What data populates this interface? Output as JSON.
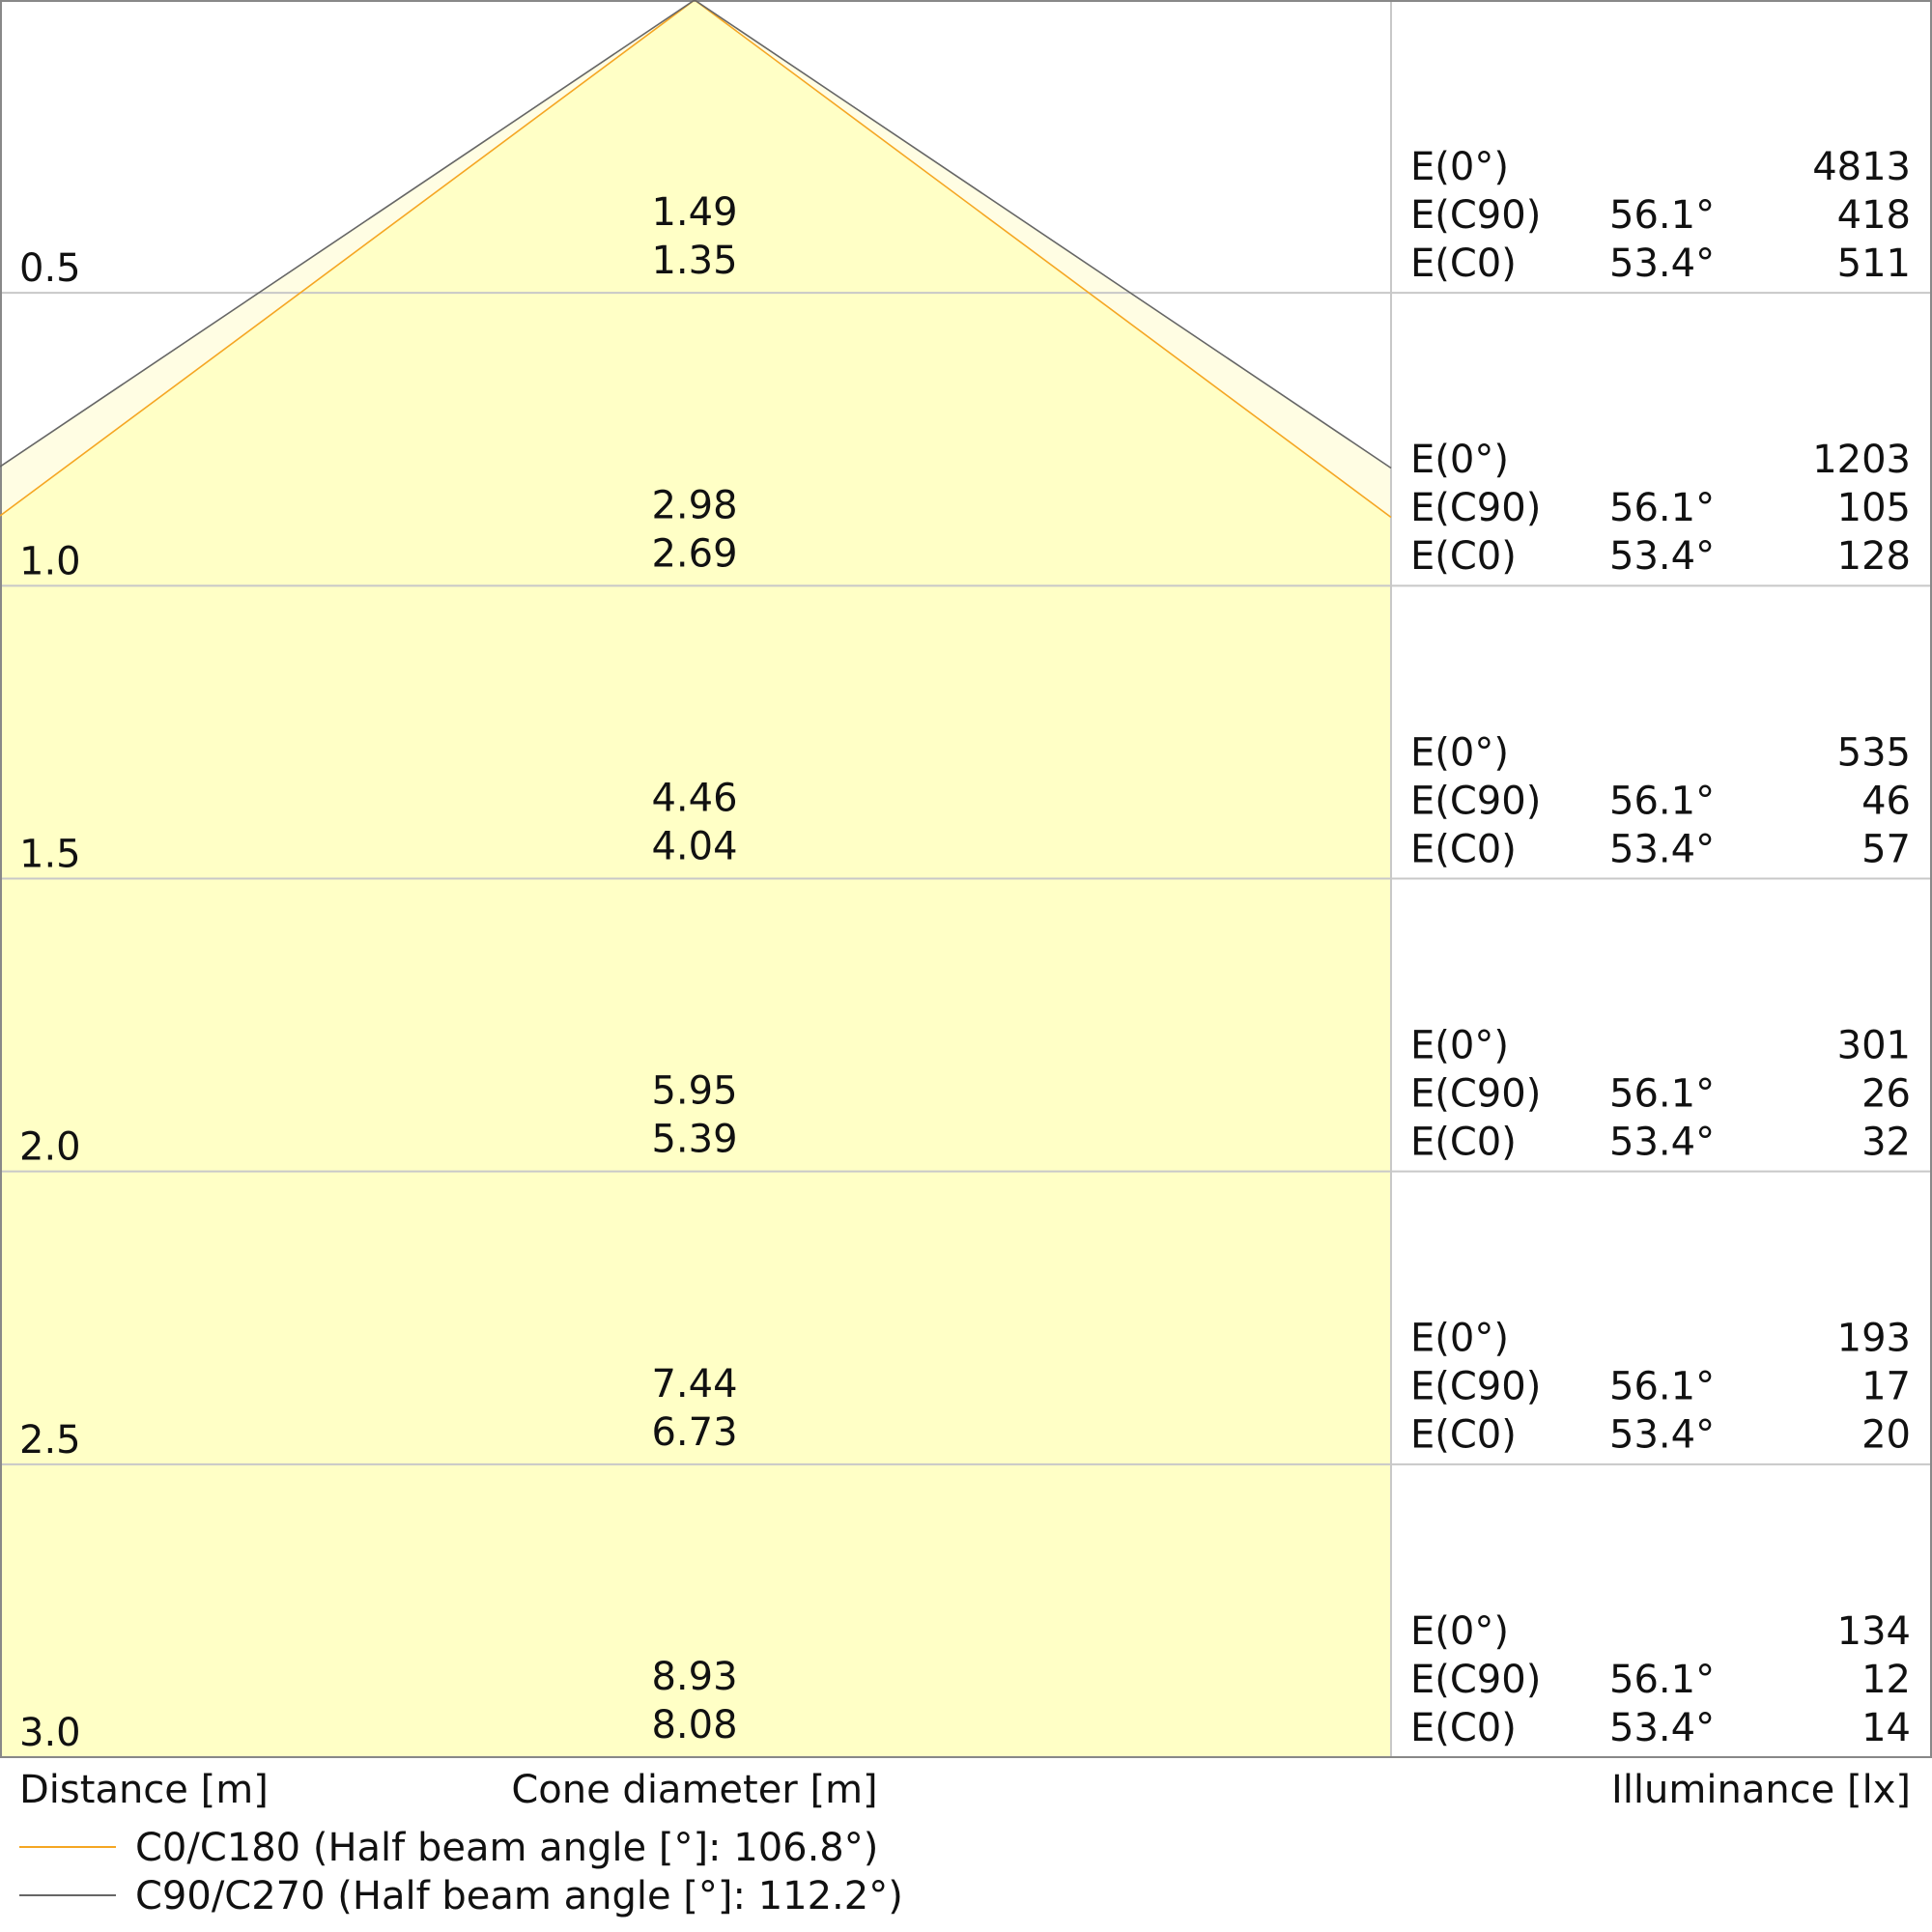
{
  "chart_data": {
    "type": "cone-diagram",
    "xlabel_left": "Distance [m]",
    "xlabel_center": "Cone diameter [m]",
    "xlabel_right": "Illuminance [lx]",
    "distance_max": 3.0,
    "series": [
      {
        "name": "C0/C180 (Half beam angle [°]: 106.8°)",
        "half_angle_deg": 53.4,
        "color": "#f5a623"
      },
      {
        "name": "C90/C270 (Half beam angle [°]: 112.2°)",
        "half_angle_deg": 56.1,
        "color": "#666666"
      }
    ],
    "fill_colors": {
      "c0": "#ffffc6",
      "c90": "#fffde3"
    },
    "rows": [
      {
        "distance": "0.5",
        "cone_c90": "1.49",
        "cone_c0": "1.35",
        "e0_label": "E(0°)",
        "e0": "4813",
        "ec90_label": "E(C90)",
        "ec90_angle": "56.1°",
        "ec90": "418",
        "ec0_label": "E(C0)",
        "ec0_angle": "53.4°",
        "ec0": "511"
      },
      {
        "distance": "1.0",
        "cone_c90": "2.98",
        "cone_c0": "2.69",
        "e0_label": "E(0°)",
        "e0": "1203",
        "ec90_label": "E(C90)",
        "ec90_angle": "56.1°",
        "ec90": "105",
        "ec0_label": "E(C0)",
        "ec0_angle": "53.4°",
        "ec0": "128"
      },
      {
        "distance": "1.5",
        "cone_c90": "4.46",
        "cone_c0": "4.04",
        "e0_label": "E(0°)",
        "e0": "535",
        "ec90_label": "E(C90)",
        "ec90_angle": "56.1°",
        "ec90": "46",
        "ec0_label": "E(C0)",
        "ec0_angle": "53.4°",
        "ec0": "57"
      },
      {
        "distance": "2.0",
        "cone_c90": "5.95",
        "cone_c0": "5.39",
        "e0_label": "E(0°)",
        "e0": "301",
        "ec90_label": "E(C90)",
        "ec90_angle": "56.1°",
        "ec90": "26",
        "ec0_label": "E(C0)",
        "ec0_angle": "53.4°",
        "ec0": "32"
      },
      {
        "distance": "2.5",
        "cone_c90": "7.44",
        "cone_c0": "6.73",
        "e0_label": "E(0°)",
        "e0": "193",
        "ec90_label": "E(C90)",
        "ec90_angle": "56.1°",
        "ec90": "17",
        "ec0_label": "E(C0)",
        "ec0_angle": "53.4°",
        "ec0": "20"
      },
      {
        "distance": "3.0",
        "cone_c90": "8.93",
        "cone_c0": "8.08",
        "e0_label": "E(0°)",
        "e0": "134",
        "ec90_label": "E(C90)",
        "ec90_angle": "56.1°",
        "ec90": "12",
        "ec0_label": "E(C0)",
        "ec0_angle": "53.4°",
        "ec0": "14"
      }
    ]
  }
}
